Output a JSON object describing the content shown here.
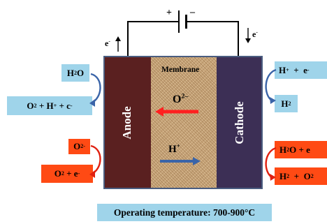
{
  "battery": {
    "plus": "+",
    "minus": "–"
  },
  "electron_left": {
    "base": "e",
    "sup": "-"
  },
  "electron_right": {
    "base": "e",
    "sup": "-"
  },
  "anode": {
    "label": "Anode"
  },
  "cathode": {
    "label": "Cathode"
  },
  "membrane": {
    "label": "Membrane",
    "oxide_ion": {
      "base": "O",
      "sup": "2–"
    },
    "proton": {
      "base": "H",
      "sup": "+"
    }
  },
  "left_top": {
    "h2o": {
      "base": "H",
      "sub": "2",
      "rest": "O"
    },
    "products": {
      "a": "O",
      "a_sub": "2",
      "b": " + H",
      "b_sup": "+",
      "c": " + c",
      "c_sup": "-"
    }
  },
  "left_bottom": {
    "o2minus": {
      "base": "O",
      "sup": "2-"
    },
    "products": {
      "a": "O",
      "a_sub": "2",
      "b": " + e",
      "b_sup": "-"
    }
  },
  "right_top": {
    "reactants": {
      "a": "H",
      "a_sup": "+",
      "b": "  +  e",
      "b_sup": "-"
    },
    "h2": {
      "base": "H",
      "sub": "2"
    }
  },
  "right_bottom": {
    "reactants": {
      "a": "H",
      "a_sub": "2",
      "b": "O + e"
    },
    "products": {
      "a": "H",
      "a_sub": "2",
      "b": "  +  O",
      "b_sup": "2"
    }
  },
  "footer": {
    "label": "Operating temperature: 700-900°C"
  },
  "colors": {
    "anode": "#5a2020",
    "cathode": "#3c2f55",
    "membrane": "#c8a57a",
    "blue_box": "#9fd4ea",
    "red_box": "#ff4a14",
    "oxide_arrow": "#ff2020",
    "proton_arrow": "#3a64a8"
  }
}
